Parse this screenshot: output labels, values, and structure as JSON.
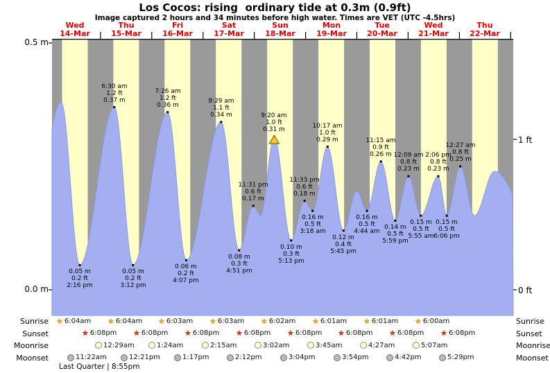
{
  "chart": {
    "title": "Los Cocos: rising  ordinary tide at 0.3m (0.9ft)",
    "subtitle": "Image captured 2 hours and 34 minutes before high water. Times are VET (UTC -4.5hrs)",
    "y_axis": {
      "left_top": "0.5 m",
      "left_bottom": "0.0 m",
      "right_top": "1 ft",
      "right_bottom": "0 ft"
    }
  },
  "chart_data": {
    "type": "area",
    "title": "Los Cocos tide height",
    "x_unit": "hours from Wed 14-Mar 00:00 (VET)",
    "y_unit": "m",
    "ylim_m": [
      0,
      0.5
    ],
    "y_ticks_m": [
      0.0,
      0.5
    ],
    "y_ticks_ft": [
      0,
      1
    ],
    "x_span_hours": [
      0,
      217
    ],
    "days": [
      {
        "name": "Wed",
        "date": "14-Mar"
      },
      {
        "name": "Thu",
        "date": "15-Mar"
      },
      {
        "name": "Fri",
        "date": "16-Mar"
      },
      {
        "name": "Sat",
        "date": "17-Mar"
      },
      {
        "name": "Sun",
        "date": "18-Mar"
      },
      {
        "name": "Mon",
        "date": "19-Mar"
      },
      {
        "name": "Tue",
        "date": "20-Mar"
      },
      {
        "name": "Wed",
        "date": "21-Mar"
      },
      {
        "name": "Thu",
        "date": "22-Mar"
      }
    ],
    "daylight_hours": {
      "start": 6,
      "end": 18
    },
    "tide_events": [
      {
        "t": -10.7,
        "h": 0.05,
        "estimated": true
      },
      {
        "t": 5.6,
        "h": 0.38,
        "estimated": true
      },
      {
        "t": 14.27,
        "h": 0.05,
        "pos": "below",
        "lines": [
          "0.05 m",
          "0.2 ft",
          "2:16 pm"
        ]
      },
      {
        "t": 30.5,
        "h": 0.37,
        "pos": "above",
        "lines": [
          "6:30 am",
          "1.2 ft",
          "0.37 m"
        ]
      },
      {
        "t": 39.2,
        "h": 0.05,
        "pos": "below",
        "lines": [
          "0.05 m",
          "0.2 ft",
          "3:12 pm"
        ]
      },
      {
        "t": 55.43,
        "h": 0.36,
        "pos": "above",
        "lines": [
          "7:26 am",
          "1.2 ft",
          "0.36 m"
        ]
      },
      {
        "t": 64.12,
        "h": 0.06,
        "pos": "below",
        "lines": [
          "0.06 m",
          "0.2 ft",
          "4:07 pm"
        ]
      },
      {
        "t": 80.48,
        "h": 0.34,
        "pos": "above",
        "lines": [
          "8:29 am",
          "1.1 ft",
          "0.34 m"
        ]
      },
      {
        "t": 88.85,
        "h": 0.08,
        "pos": "below",
        "lines": [
          "0.08 m",
          "0.3 ft",
          "4:51 pm"
        ]
      },
      {
        "t": 95.52,
        "h": 0.17,
        "pos": "above",
        "lines": [
          "11:31 pm",
          "0.6 ft",
          "0.17 m"
        ]
      },
      {
        "t": 99.0,
        "h": 0.15,
        "estimated": true
      },
      {
        "t": 105.33,
        "h": 0.31,
        "pos": "above",
        "current": true,
        "lines": [
          "9:20 am",
          "1.0 ft",
          "0.31 m"
        ]
      },
      {
        "t": 113.22,
        "h": 0.1,
        "pos": "below",
        "lines": [
          "0.10 m",
          "0.3 ft",
          "5:13 pm"
        ]
      },
      {
        "t": 119.55,
        "h": 0.18,
        "pos": "above",
        "lines": [
          "11:33 pm",
          "0.6 ft",
          "0.18 m"
        ]
      },
      {
        "t": 123.3,
        "h": 0.16,
        "pos": "below",
        "lines": [
          "0.16 m",
          "0.5 ft",
          "3:18 am"
        ]
      },
      {
        "t": 130.28,
        "h": 0.29,
        "pos": "above",
        "lines": [
          "10:17 am",
          "1.0 ft",
          "0.29 m"
        ]
      },
      {
        "t": 137.75,
        "h": 0.12,
        "pos": "below",
        "lines": [
          "0.12 m",
          "0.4 ft",
          "5:45 pm"
        ]
      },
      {
        "t": 143.9,
        "h": 0.2,
        "estimated": true
      },
      {
        "t": 148.73,
        "h": 0.16,
        "pos": "below",
        "lines": [
          "0.16 m",
          "0.5 ft",
          "4:44 am"
        ]
      },
      {
        "t": 155.25,
        "h": 0.26,
        "pos": "above",
        "lines": [
          "11:15 am",
          "0.9 ft",
          "0.26 m"
        ]
      },
      {
        "t": 161.98,
        "h": 0.14,
        "pos": "below",
        "lines": [
          "0.14 m",
          "0.5 ft",
          "5:59 pm"
        ]
      },
      {
        "t": 168.15,
        "h": 0.23,
        "pos": "above",
        "lines": [
          "12:09 am",
          "0.8 ft",
          "0.23 m"
        ]
      },
      {
        "t": 173.92,
        "h": 0.15,
        "pos": "below",
        "lines": [
          "0.15 m",
          "0.5 ft",
          "5:55 am"
        ]
      },
      {
        "t": 182.1,
        "h": 0.23,
        "pos": "above",
        "lines": [
          "2:06 pm",
          "0.8 ft",
          "0.23 m"
        ]
      },
      {
        "t": 186.1,
        "h": 0.15,
        "pos": "below",
        "lines": [
          "0.15 m",
          "0.5 ft",
          "6:06 pm"
        ]
      },
      {
        "t": 192.45,
        "h": 0.25,
        "pos": "above",
        "lines": [
          "12:27 am",
          "0.8 ft",
          "0.25 m"
        ]
      },
      {
        "t": 199.0,
        "h": 0.15,
        "estimated": true
      },
      {
        "t": 208.5,
        "h": 0.24,
        "estimated": true
      },
      {
        "t": 226.0,
        "h": 0.14,
        "estimated": true
      }
    ]
  },
  "astro": {
    "rows": [
      {
        "key": "sunrise",
        "label": "Sunrise",
        "icon": "star",
        "entries": [
          {
            "time": "6:04am",
            "day": 0
          },
          {
            "time": "6:04am",
            "day": 1
          },
          {
            "time": "6:03am",
            "day": 2
          },
          {
            "time": "6:03am",
            "day": 3
          },
          {
            "time": "6:02am",
            "day": 4
          },
          {
            "time": "6:01am",
            "day": 5
          },
          {
            "time": "6:01am",
            "day": 6
          },
          {
            "time": "6:00am",
            "day": 7
          }
        ]
      },
      {
        "key": "sunset",
        "label": "Sunset",
        "icon": "star",
        "entries": [
          {
            "time": "6:08pm",
            "day": 0
          },
          {
            "time": "6:08pm",
            "day": 1
          },
          {
            "time": "6:08pm",
            "day": 2
          },
          {
            "time": "6:08pm",
            "day": 3
          },
          {
            "time": "6:08pm",
            "day": 4
          },
          {
            "time": "6:08pm",
            "day": 5
          },
          {
            "time": "6:08pm",
            "day": 6
          },
          {
            "time": "6:08pm",
            "day": 7
          }
        ]
      },
      {
        "key": "moonrise",
        "label": "Moonrise",
        "icon": "moon",
        "entries": [
          {
            "time": "12:29am",
            "day": 1
          },
          {
            "time": "1:24am",
            "day": 2
          },
          {
            "time": "2:15am",
            "day": 3
          },
          {
            "time": "3:02am",
            "day": 4
          },
          {
            "time": "3:45am",
            "day": 5
          },
          {
            "time": "4:27am",
            "day": 6
          },
          {
            "time": "5:07am",
            "day": 7
          }
        ]
      },
      {
        "key": "moonset",
        "label": "Moonset",
        "icon": "moon",
        "entries": [
          {
            "time": "11:22am",
            "day": 0
          },
          {
            "time": "12:21pm",
            "day": 1
          },
          {
            "time": "1:17pm",
            "day": 2
          },
          {
            "time": "2:12pm",
            "day": 3
          },
          {
            "time": "3:04pm",
            "day": 4
          },
          {
            "time": "3:54pm",
            "day": 5
          },
          {
            "time": "4:42pm",
            "day": 6
          },
          {
            "time": "5:29pm",
            "day": 7
          }
        ]
      }
    ],
    "moon_phase": "Last Quarter | 8:55pm"
  },
  "colors": {
    "night_band": "#9a9a9a",
    "day_band": "#ffffc8",
    "tide_fill": "#a3aff0",
    "tide_edge": "#8d9ae6",
    "day_label": "#e00000",
    "marker_fill": "#f2cd2a",
    "marker_edge": "#6e5d07"
  }
}
